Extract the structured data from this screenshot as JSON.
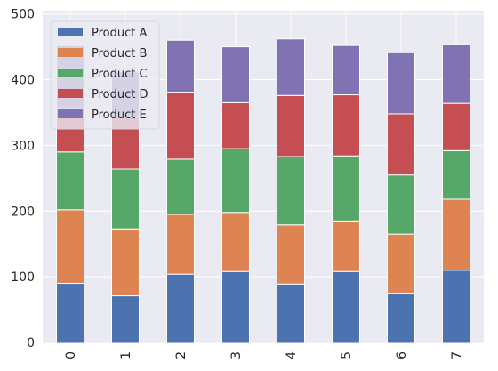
{
  "chart_data": {
    "type": "bar",
    "stacked": true,
    "categories": [
      "0",
      "1",
      "2",
      "3",
      "4",
      "5",
      "6",
      "7"
    ],
    "series": [
      {
        "name": "Product A",
        "color": "#4c72b0",
        "values": [
          90,
          71,
          104,
          108,
          89,
          108,
          75,
          110
        ]
      },
      {
        "name": "Product B",
        "color": "#dd8452",
        "values": [
          112,
          102,
          91,
          90,
          90,
          77,
          90,
          108
        ]
      },
      {
        "name": "Product C",
        "color": "#55a868",
        "values": [
          88,
          91,
          84,
          97,
          104,
          99,
          90,
          74
        ]
      },
      {
        "name": "Product D",
        "color": "#c44e52",
        "values": [
          66,
          79,
          102,
          70,
          93,
          93,
          93,
          72
        ]
      },
      {
        "name": "Product E",
        "color": "#8172b3",
        "values": [
          96,
          69,
          79,
          85,
          86,
          75,
          93,
          89
        ]
      }
    ],
    "title": "",
    "xlabel": "",
    "ylabel": "",
    "ylim": [
      0,
      505
    ],
    "yticks": [
      0,
      100,
      200,
      300,
      400,
      500
    ],
    "grid": true,
    "legend_position": "top-left",
    "background_color": "#eaeaf2"
  }
}
